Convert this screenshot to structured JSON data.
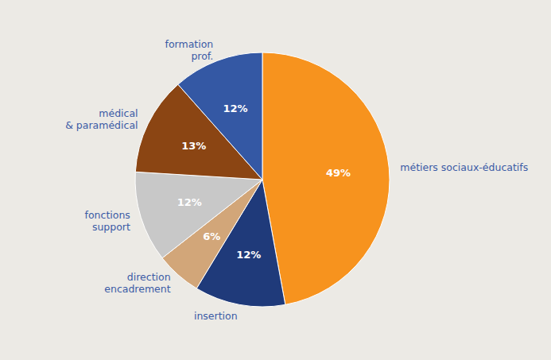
{
  "chart_data": {
    "type": "pie",
    "categories": [
      "métiers sociaux-éducatifs",
      "insertion",
      "direction\nencadrement",
      "fonctions\nsupport",
      "médical\n& paramédical",
      "formation\nprof."
    ],
    "values": [
      49,
      12,
      6,
      12,
      13,
      12
    ],
    "value_labels": [
      "49%",
      "12%",
      "6%",
      "12%",
      "13%",
      "12%"
    ],
    "colors": [
      "#F7931E",
      "#1F3A7A",
      "#D2A679",
      "#C8C8C8",
      "#8B4513",
      "#3458A4"
    ],
    "data_labels": true
  }
}
